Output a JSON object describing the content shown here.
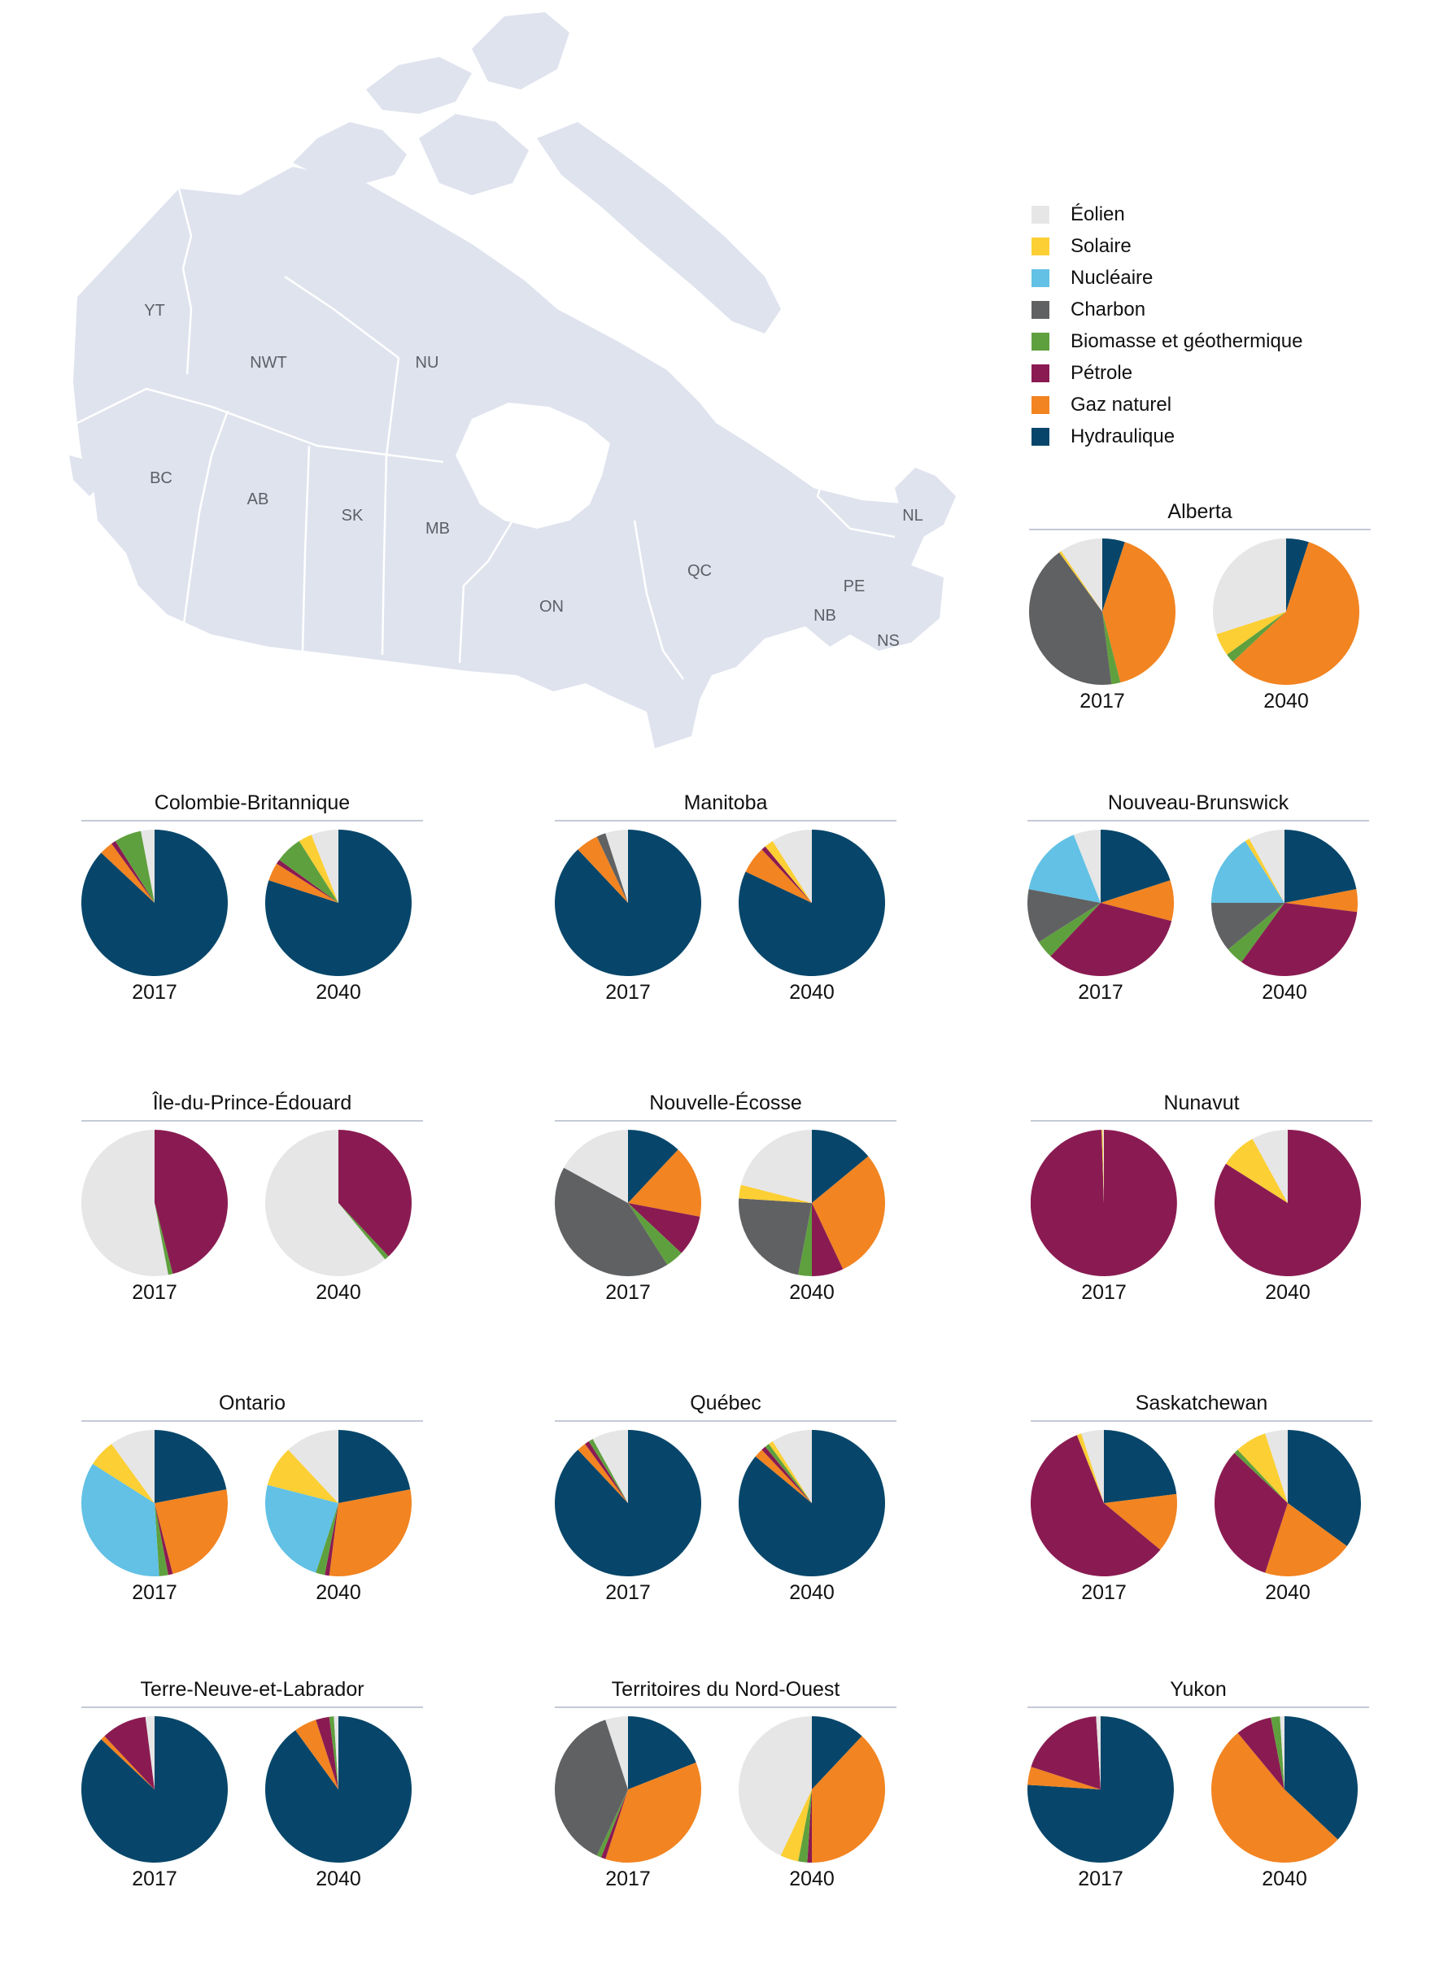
{
  "colors": {
    "wind": "#e6e6e6",
    "solar": "#fccf34",
    "nuclear": "#62c1e5",
    "coal": "#606163",
    "biomass": "#5fa03e",
    "oil": "#8a1b52",
    "gas": "#f28421",
    "hydro": "#07466a",
    "map_fill": "#dfe3ee",
    "map_border": "#ffffff",
    "map_label": "#5b5f66",
    "rule": "#c5cad6"
  },
  "map": {
    "labels": [
      {
        "id": "yt",
        "text": "YT"
      },
      {
        "id": "nwt",
        "text": "NWT"
      },
      {
        "id": "nu",
        "text": "NU"
      },
      {
        "id": "bc",
        "text": "BC"
      },
      {
        "id": "ab",
        "text": "AB"
      },
      {
        "id": "sk",
        "text": "SK"
      },
      {
        "id": "mb",
        "text": "MB"
      },
      {
        "id": "on",
        "text": "ON"
      },
      {
        "id": "qc",
        "text": "QC"
      },
      {
        "id": "nl",
        "text": "NL"
      },
      {
        "id": "pe",
        "text": "PE"
      },
      {
        "id": "nb",
        "text": "NB"
      },
      {
        "id": "ns",
        "text": "NS"
      }
    ]
  },
  "legend": [
    {
      "key": "wind",
      "label": "Éolien"
    },
    {
      "key": "solar",
      "label": "Solaire"
    },
    {
      "key": "nuclear",
      "label": "Nucléaire"
    },
    {
      "key": "coal",
      "label": "Charbon"
    },
    {
      "key": "biomass",
      "label": "Biomasse et géothermique"
    },
    {
      "key": "oil",
      "label": "Pétrole"
    },
    {
      "key": "gas",
      "label": "Gaz naturel"
    },
    {
      "key": "hydro",
      "label": "Hydraulique"
    }
  ],
  "chart_data": {
    "type": "pie",
    "unit": "percent share of generation",
    "years": [
      "2017",
      "2040"
    ],
    "slice_order_clockwise_from_top": [
      "hydro",
      "gas",
      "oil",
      "biomass",
      "coal",
      "nuclear",
      "solar",
      "wind"
    ],
    "provinces": [
      {
        "id": "alberta",
        "name": "Alberta",
        "2017": {
          "hydro": 5,
          "gas": 41,
          "oil": 0,
          "biomass": 2,
          "coal": 42,
          "nuclear": 0,
          "solar": 0.5,
          "wind": 9.5
        },
        "2040": {
          "hydro": 5,
          "gas": 58,
          "oil": 0,
          "biomass": 2,
          "coal": 0,
          "nuclear": 0,
          "solar": 5,
          "wind": 30
        }
      },
      {
        "id": "colombie-britannique",
        "name": "Colombie-Britannique",
        "2017": {
          "hydro": 87,
          "gas": 3,
          "oil": 1,
          "biomass": 6,
          "coal": 0,
          "nuclear": 0,
          "solar": 0,
          "wind": 3
        },
        "2040": {
          "hydro": 80,
          "gas": 4,
          "oil": 1,
          "biomass": 6,
          "coal": 0,
          "nuclear": 0,
          "solar": 3,
          "wind": 6
        }
      },
      {
        "id": "manitoba",
        "name": "Manitoba",
        "2017": {
          "hydro": 88,
          "gas": 5,
          "oil": 0,
          "biomass": 0,
          "coal": 2,
          "nuclear": 0,
          "solar": 0,
          "wind": 5
        },
        "2040": {
          "hydro": 82,
          "gas": 6,
          "oil": 1,
          "biomass": 0,
          "coal": 0,
          "nuclear": 0,
          "solar": 2,
          "wind": 9
        }
      },
      {
        "id": "nouveau-brunswick",
        "name": "Nouveau-Brunswick",
        "2017": {
          "hydro": 20,
          "gas": 9,
          "oil": 33,
          "biomass": 4,
          "coal": 12,
          "nuclear": 16,
          "solar": 0,
          "wind": 6
        },
        "2040": {
          "hydro": 22,
          "gas": 5,
          "oil": 33,
          "biomass": 4,
          "coal": 11,
          "nuclear": 16,
          "solar": 1,
          "wind": 8
        }
      },
      {
        "id": "ile-du-prince-edouard",
        "name": "Île-du-Prince-Édouard",
        "2017": {
          "hydro": 0,
          "gas": 0,
          "oil": 46,
          "biomass": 1,
          "coal": 0,
          "nuclear": 0,
          "solar": 0,
          "wind": 53
        },
        "2040": {
          "hydro": 0,
          "gas": 0,
          "oil": 38,
          "biomass": 1,
          "coal": 0,
          "nuclear": 0,
          "solar": 0,
          "wind": 61
        }
      },
      {
        "id": "nouvelle-ecosse",
        "name": "Nouvelle-Écosse",
        "2017": {
          "hydro": 12,
          "gas": 16,
          "oil": 9,
          "biomass": 4,
          "coal": 42,
          "nuclear": 0,
          "solar": 0,
          "wind": 17
        },
        "2040": {
          "hydro": 14,
          "gas": 29,
          "oil": 7,
          "biomass": 3,
          "coal": 23,
          "nuclear": 0,
          "solar": 3,
          "wind": 21
        }
      },
      {
        "id": "nunavut",
        "name": "Nunavut",
        "2017": {
          "hydro": 0,
          "gas": 0,
          "oil": 99.5,
          "biomass": 0,
          "coal": 0,
          "nuclear": 0,
          "solar": 0.25,
          "wind": 0.25
        },
        "2040": {
          "hydro": 0,
          "gas": 0,
          "oil": 84,
          "biomass": 0,
          "coal": 0,
          "nuclear": 0,
          "solar": 8,
          "wind": 8
        }
      },
      {
        "id": "ontario",
        "name": "Ontario",
        "2017": {
          "hydro": 22,
          "gas": 24,
          "oil": 1,
          "biomass": 2,
          "coal": 0,
          "nuclear": 35,
          "solar": 6,
          "wind": 10
        },
        "2040": {
          "hydro": 22,
          "gas": 30,
          "oil": 1,
          "biomass": 2,
          "coal": 0,
          "nuclear": 24,
          "solar": 9,
          "wind": 12
        }
      },
      {
        "id": "quebec",
        "name": "Québec",
        "2017": {
          "hydro": 88,
          "gas": 2,
          "oil": 1,
          "biomass": 1,
          "coal": 0,
          "nuclear": 0,
          "solar": 0,
          "wind": 8
        },
        "2040": {
          "hydro": 86,
          "gas": 2,
          "oil": 1,
          "biomass": 1,
          "coal": 0,
          "nuclear": 0,
          "solar": 1,
          "wind": 9
        }
      },
      {
        "id": "saskatchewan",
        "name": "Saskatchewan",
        "2017": {
          "hydro": 23,
          "gas": 13,
          "oil": 58,
          "biomass": 0,
          "coal": 0,
          "nuclear": 0,
          "solar": 1,
          "wind": 5
        },
        "2040": {
          "hydro": 35,
          "gas": 20,
          "oil": 32,
          "biomass": 1,
          "coal": 0,
          "nuclear": 0,
          "solar": 7,
          "wind": 5
        }
      },
      {
        "id": "terre-neuve-et-labrador",
        "name": "Terre-Neuve-et-Labrador",
        "2017": {
          "hydro": 87,
          "gas": 1,
          "oil": 10,
          "biomass": 0,
          "coal": 0,
          "nuclear": 0,
          "solar": 0,
          "wind": 2
        },
        "2040": {
          "hydro": 90,
          "gas": 5,
          "oil": 3,
          "biomass": 1,
          "coal": 0,
          "nuclear": 0,
          "solar": 0,
          "wind": 1
        }
      },
      {
        "id": "territoires-du-nord-ouest",
        "name": "Territoires du Nord-Ouest",
        "2017": {
          "hydro": 19,
          "gas": 36,
          "oil": 1,
          "biomass": 1,
          "coal": 38,
          "nuclear": 0,
          "solar": 0,
          "wind": 5
        },
        "2040": {
          "hydro": 12,
          "gas": 38,
          "oil": 1,
          "biomass": 2,
          "coal": 0,
          "nuclear": 0,
          "solar": 4,
          "wind": 43
        }
      },
      {
        "id": "yukon",
        "name": "Yukon",
        "2017": {
          "hydro": 76,
          "gas": 4,
          "oil": 19,
          "biomass": 0,
          "coal": 0,
          "nuclear": 0,
          "solar": 0,
          "wind": 1
        },
        "2040": {
          "hydro": 37,
          "gas": 52,
          "oil": 8,
          "biomass": 2,
          "coal": 0,
          "nuclear": 0,
          "solar": 0,
          "wind": 1
        }
      }
    ]
  }
}
